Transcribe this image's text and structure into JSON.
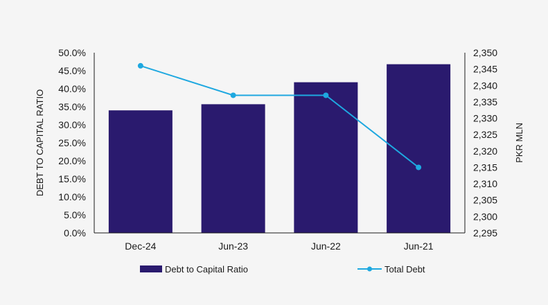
{
  "chart_data": {
    "type": "bar",
    "categories": [
      "Dec-24",
      "Jun-23",
      "Jun-22",
      "Jun-21"
    ],
    "series": [
      {
        "name": "Debt to Capital Ratio",
        "kind": "bar",
        "axis": "left",
        "unit": "%",
        "values": [
          34.0,
          35.7,
          41.8,
          46.8
        ]
      },
      {
        "name": "Total Debt",
        "kind": "line",
        "axis": "right",
        "values": [
          2346,
          2337,
          2337,
          2315
        ]
      }
    ],
    "ylabel": "DEBT TO CAPITAL RATIO",
    "y2label": "PKR MLN",
    "ylim": [
      0,
      50
    ],
    "y2lim": [
      2295,
      2350
    ],
    "yticks": [
      "0.0%",
      "5.0%",
      "10.0%",
      "15.0%",
      "20.0%",
      "25.0%",
      "30.0%",
      "35.0%",
      "40.0%",
      "45.0%",
      "50.0%"
    ],
    "y2ticks": [
      "2,295",
      "2,300",
      "2,305",
      "2,310",
      "2,315",
      "2,320",
      "2,325",
      "2,330",
      "2,335",
      "2,340",
      "2,345",
      "2,350"
    ],
    "grid": false,
    "legend_position": "bottom",
    "colors": {
      "bar": "#2a1a6e",
      "line": "#1ea8e0",
      "axis": "#1a1a1a",
      "background": "#f5f5f5"
    }
  }
}
